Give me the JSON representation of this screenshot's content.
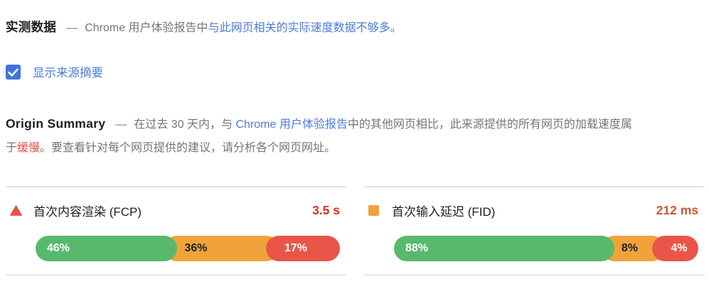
{
  "colors": {
    "link_blue": "#4d7ad8",
    "checkbox_blue": "#4272d8",
    "text_gray": "#757575",
    "heading_black": "#212121",
    "divider_gray": "#e7e7e7",
    "bar_green": "#58b96d",
    "bar_orange": "#f0a33b",
    "bar_red": "#e95549"
  },
  "field_data": {
    "title": "实测数据",
    "dash": "—",
    "description": "Chrome 用户体验报告中",
    "link_text": "与此网页相关的实际速度数据不够多。"
  },
  "origin_toggle": {
    "label": "显示来源摘要",
    "checked": true
  },
  "origin_summary": {
    "title": "Origin Summary",
    "dash": "—",
    "text_before_link": "在过去 30 天内，与 ",
    "link_text": "Chrome 用户体验报告",
    "text_after_link": "中的其他网页相比，此来源提供的所有网页的加载速度属于",
    "highlight": "缓慢",
    "text_after_highlight": "。要查看针对每个网页提供的建议，请分析各个网页网址。"
  },
  "metrics": [
    {
      "icon": "triangle-icon",
      "icon_color": "#e4564a",
      "name": "首次内容渲染 (FCP)",
      "value": "3.5 s",
      "value_color": "#d93025",
      "distribution": [
        {
          "label": "46%",
          "color": "#58b96d",
          "text_color": "#ffffff",
          "display_width_pct": 46.6
        },
        {
          "label": "36%",
          "color": "#f0a33b",
          "text_color": "#212121",
          "display_width_pct": 29.1
        },
        {
          "label": "17%",
          "color": "#e95549",
          "text_color": "#ffffff",
          "display_width_pct": 24.3
        }
      ]
    },
    {
      "icon": "square-icon",
      "icon_color": "#efa13c",
      "name": "首次输入延迟 (FID)",
      "value": "212 ms",
      "value_color": "#c75b2e",
      "distribution": [
        {
          "label": "88%",
          "color": "#58b96d",
          "text_color": "#ffffff",
          "display_width_pct": 72.4
        },
        {
          "label": "8%",
          "color": "#f0a33b",
          "text_color": "#212121",
          "display_width_pct": 12.5
        },
        {
          "label": "4%",
          "color": "#e95549",
          "text_color": "#ffffff",
          "display_width_pct": 15.1
        }
      ]
    }
  ],
  "chart_data": [
    {
      "type": "bar",
      "title": "首次内容渲染 (FCP)",
      "value_label": "3.5 s",
      "segments": [
        "green",
        "orange",
        "red"
      ],
      "values": [
        46,
        36,
        17
      ],
      "unit": "%"
    },
    {
      "type": "bar",
      "title": "首次输入延迟 (FID)",
      "value_label": "212 ms",
      "segments": [
        "green",
        "orange",
        "red"
      ],
      "values": [
        88,
        8,
        4
      ],
      "unit": "%"
    }
  ]
}
